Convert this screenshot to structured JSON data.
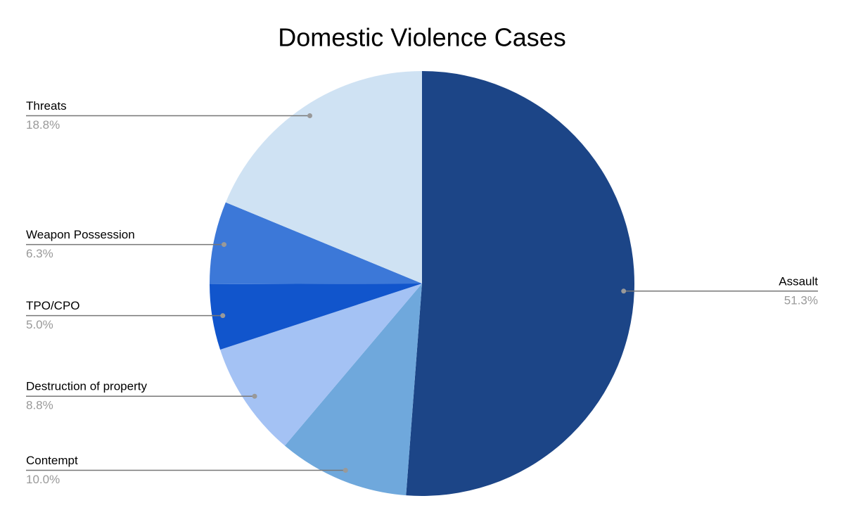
{
  "chart_data": {
    "type": "pie",
    "title": "Domestic Violence Cases",
    "categories": [
      "Assault",
      "Contempt",
      "Destruction of property",
      "TPO/CPO",
      "Weapon Possession",
      "Threats"
    ],
    "values": [
      51.3,
      10.0,
      8.8,
      5.0,
      6.3,
      18.8
    ],
    "value_labels": [
      "51.3%",
      "10.0%",
      "8.8%",
      "5.0%",
      "6.3%",
      "18.8%"
    ],
    "colors": [
      "#1c4587",
      "#6fa8dc",
      "#a4c2f4",
      "#1155cc",
      "#3c78d8",
      "#cfe2f3"
    ]
  }
}
